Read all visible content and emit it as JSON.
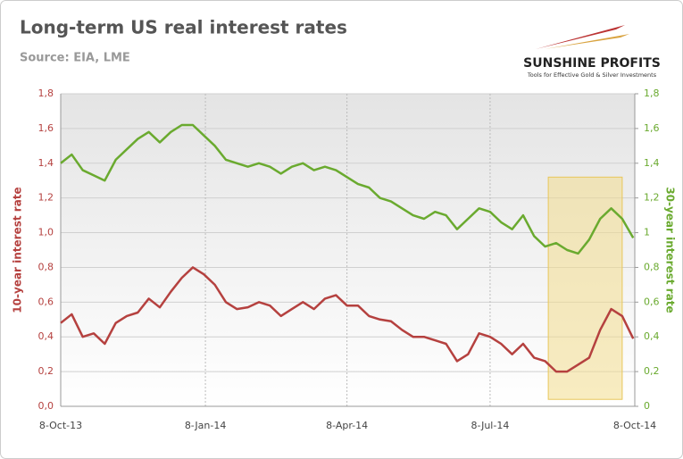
{
  "chart_data": {
    "type": "line",
    "title": "Long-term US real interest rates",
    "subtitle": "Source: EIA, LME",
    "logo": {
      "name": "SUNSHINE PROFITS",
      "tagline": "Tools for Effective Gold & Silver Investments"
    },
    "y_label": "10-year interest rate",
    "y2_label": "30-year interest rate",
    "x": [
      "2013-10-08",
      "2013-10-15",
      "2013-10-22",
      "2013-10-29",
      "2013-11-05",
      "2013-11-12",
      "2013-11-19",
      "2013-11-26",
      "2013-12-03",
      "2013-12-10",
      "2013-12-17",
      "2013-12-24",
      "2013-12-31",
      "2014-01-07",
      "2014-01-14",
      "2014-01-21",
      "2014-01-28",
      "2014-02-04",
      "2014-02-11",
      "2014-02-18",
      "2014-02-25",
      "2014-03-04",
      "2014-03-11",
      "2014-03-18",
      "2014-03-25",
      "2014-04-01",
      "2014-04-08",
      "2014-04-15",
      "2014-04-22",
      "2014-04-29",
      "2014-05-06",
      "2014-05-13",
      "2014-05-20",
      "2014-05-27",
      "2014-06-03",
      "2014-06-10",
      "2014-06-17",
      "2014-06-24",
      "2014-07-01",
      "2014-07-08",
      "2014-07-15",
      "2014-07-22",
      "2014-07-29",
      "2014-08-05",
      "2014-08-12",
      "2014-08-19",
      "2014-08-26",
      "2014-09-02",
      "2014-09-09",
      "2014-09-16",
      "2014-09-23",
      "2014-09-30",
      "2014-10-07"
    ],
    "series": [
      {
        "name": "10-year interest rate",
        "color": "#b5413f",
        "axis": "y",
        "values": [
          0.48,
          0.53,
          0.4,
          0.42,
          0.36,
          0.48,
          0.52,
          0.54,
          0.62,
          0.57,
          0.66,
          0.74,
          0.8,
          0.76,
          0.7,
          0.6,
          0.56,
          0.57,
          0.6,
          0.58,
          0.52,
          0.56,
          0.6,
          0.56,
          0.62,
          0.64,
          0.58,
          0.58,
          0.52,
          0.5,
          0.49,
          0.44,
          0.4,
          0.4,
          0.38,
          0.36,
          0.26,
          0.3,
          0.42,
          0.4,
          0.36,
          0.3,
          0.36,
          0.28,
          0.26,
          0.2,
          0.2,
          0.24,
          0.28,
          0.44,
          0.56,
          0.52,
          0.39
        ]
      },
      {
        "name": "30-year interest rate",
        "color": "#6aaa2f",
        "axis": "y2",
        "values": [
          1.4,
          1.45,
          1.36,
          1.33,
          1.3,
          1.42,
          1.48,
          1.54,
          1.58,
          1.52,
          1.58,
          1.62,
          1.62,
          1.56,
          1.5,
          1.42,
          1.4,
          1.38,
          1.4,
          1.38,
          1.34,
          1.38,
          1.4,
          1.36,
          1.38,
          1.36,
          1.32,
          1.28,
          1.26,
          1.2,
          1.18,
          1.14,
          1.1,
          1.08,
          1.12,
          1.1,
          1.02,
          1.08,
          1.14,
          1.12,
          1.06,
          1.02,
          1.1,
          0.98,
          0.92,
          0.94,
          0.9,
          0.88,
          0.96,
          1.08,
          1.14,
          1.08,
          0.97
        ]
      }
    ],
    "xlim": [
      "2013-10-08",
      "2014-10-08"
    ],
    "xticks": [
      {
        "value": "2013-10-08",
        "label": "8-Oct-13"
      },
      {
        "value": "2014-01-08",
        "label": "8-Jan-14"
      },
      {
        "value": "2014-04-08",
        "label": "8-Apr-14"
      },
      {
        "value": "2014-07-08",
        "label": "8-Jul-14"
      },
      {
        "value": "2014-10-08",
        "label": "8-Oct-14"
      }
    ],
    "ylim": [
      0,
      1.8
    ],
    "yticks": [
      {
        "value": 0,
        "label": "0,0"
      },
      {
        "value": 0.2,
        "label": "0,2"
      },
      {
        "value": 0.4,
        "label": "0,4"
      },
      {
        "value": 0.6,
        "label": "0,6"
      },
      {
        "value": 0.8,
        "label": "0,8"
      },
      {
        "value": 1,
        "label": "1,0"
      },
      {
        "value": 1.2,
        "label": "1,2"
      },
      {
        "value": 1.4,
        "label": "1,4"
      },
      {
        "value": 1.6,
        "label": "1,6"
      },
      {
        "value": 1.8,
        "label": "1,8"
      }
    ],
    "y2lim": [
      0,
      1.8
    ],
    "y2ticks": [
      0,
      {
        "value": 0.2,
        "label": "0,2"
      },
      {
        "value": 0.4,
        "label": "0,4"
      },
      {
        "value": 0.6,
        "label": "0,6"
      },
      {
        "value": 0.8,
        "label": "0,8"
      },
      1,
      {
        "value": 1.2,
        "label": "1,2"
      },
      {
        "value": 1.4,
        "label": "1,4"
      },
      {
        "value": 1.6,
        "label": "1,6"
      },
      {
        "value": 1.8,
        "label": "1,8"
      }
    ],
    "grid": true,
    "highlight": {
      "x": [
        "2014-08-14",
        "2014-09-30"
      ],
      "y2": [
        0.04,
        1.32
      ],
      "color": "#f3dd8e"
    }
  }
}
